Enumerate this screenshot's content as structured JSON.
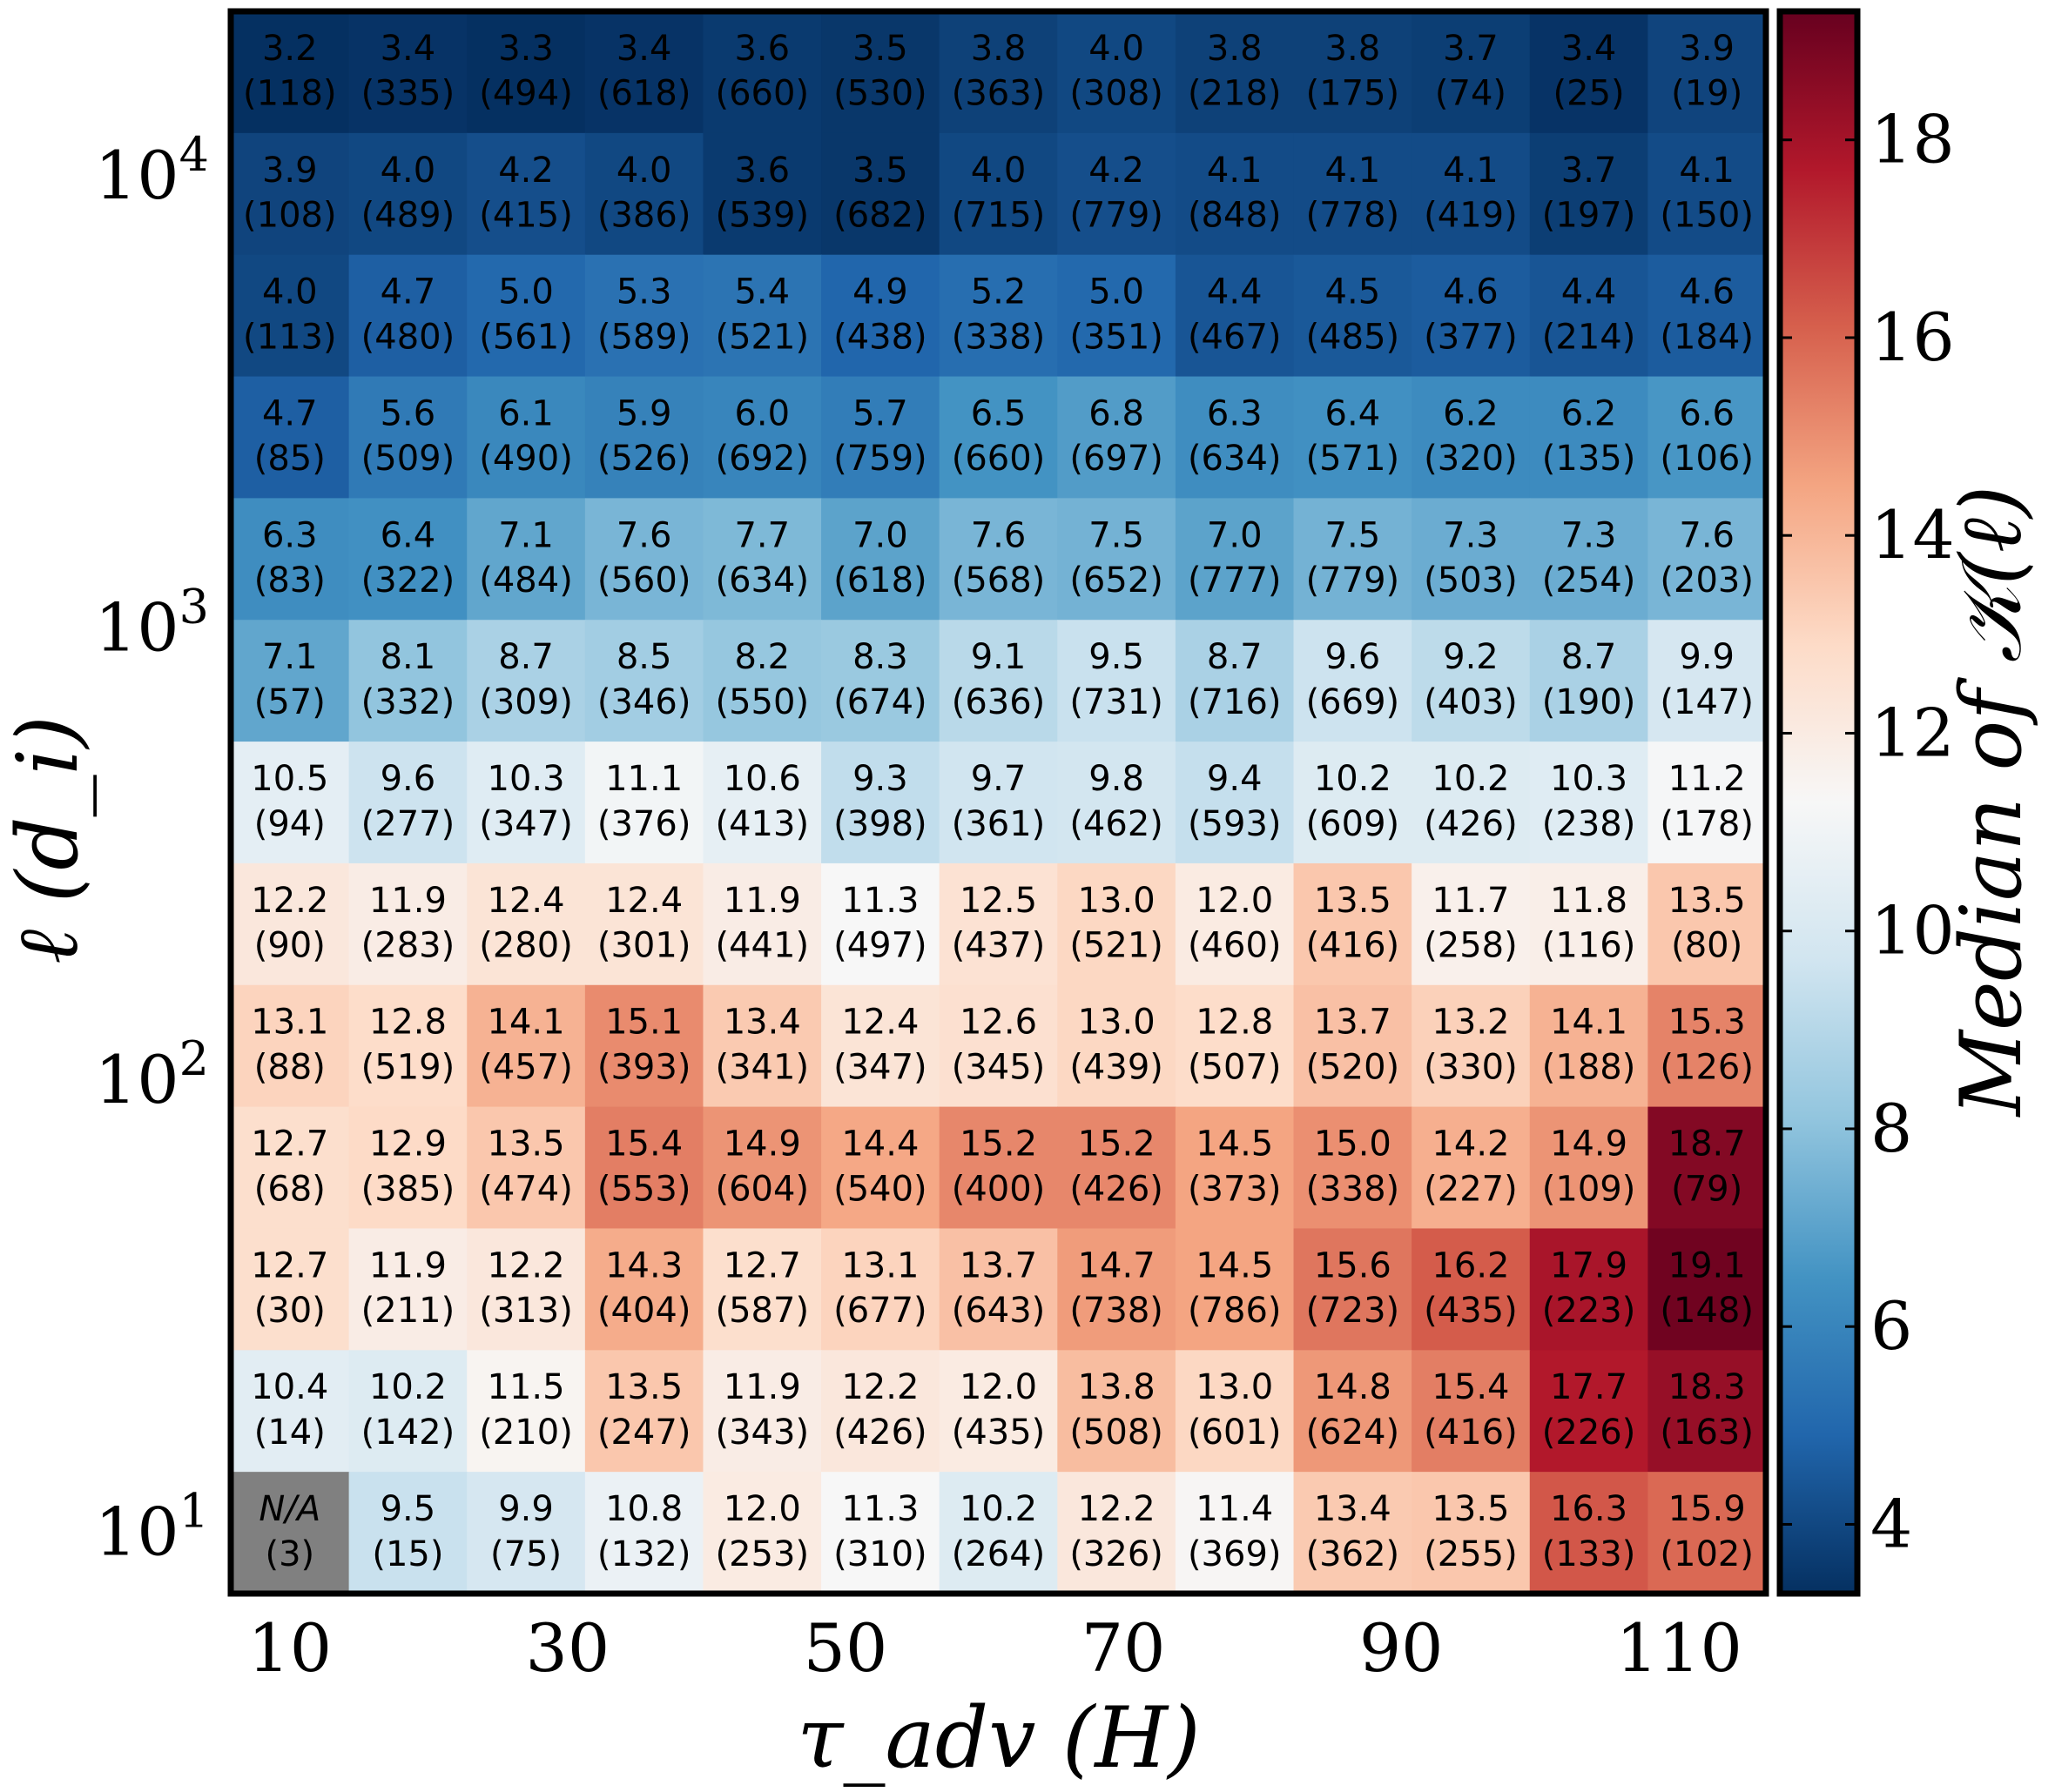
{
  "chart_data": {
    "type": "heatmap",
    "title": "",
    "xlabel": "τ_adv (H)",
    "ylabel": "ℓ (d_i)",
    "colorbar_label": "Median of 𝒦(ℓ)",
    "x_ticks": [
      "10",
      "30",
      "50",
      "70",
      "90",
      "110"
    ],
    "y_ticks": [
      "10^4",
      "10^3",
      "10^2",
      "10^1"
    ],
    "colorbar_ticks": [
      "4",
      "6",
      "8",
      "10",
      "12",
      "14",
      "16",
      "18"
    ],
    "colorbar_range": [
      3.3,
      19.3
    ],
    "colormap": "RdBu_r",
    "na_label": "N/A",
    "na_color": "#808080",
    "columns": 13,
    "rows_top_to_bottom": [
      {
        "values": [
          3.2,
          3.4,
          3.3,
          3.4,
          3.6,
          3.5,
          3.8,
          4.0,
          3.8,
          3.8,
          3.7,
          3.4,
          3.9
        ],
        "counts": [
          118,
          335,
          494,
          618,
          660,
          530,
          363,
          308,
          218,
          175,
          74,
          25,
          19
        ]
      },
      {
        "values": [
          3.9,
          4.0,
          4.2,
          4.0,
          3.6,
          3.5,
          4.0,
          4.2,
          4.1,
          4.1,
          4.1,
          3.7,
          4.1
        ],
        "counts": [
          108,
          489,
          415,
          386,
          539,
          682,
          715,
          779,
          848,
          778,
          419,
          197,
          150
        ]
      },
      {
        "values": [
          4.0,
          4.7,
          5.0,
          5.3,
          5.4,
          4.9,
          5.2,
          5.0,
          4.4,
          4.5,
          4.6,
          4.4,
          4.6
        ],
        "counts": [
          113,
          480,
          561,
          589,
          521,
          438,
          338,
          351,
          467,
          485,
          377,
          214,
          184
        ]
      },
      {
        "values": [
          4.7,
          5.6,
          6.1,
          5.9,
          6.0,
          5.7,
          6.5,
          6.8,
          6.3,
          6.4,
          6.2,
          6.2,
          6.6
        ],
        "counts": [
          85,
          509,
          490,
          526,
          692,
          759,
          660,
          697,
          634,
          571,
          320,
          135,
          106
        ]
      },
      {
        "values": [
          6.3,
          6.4,
          7.1,
          7.6,
          7.7,
          7.0,
          7.6,
          7.5,
          7.0,
          7.5,
          7.3,
          7.3,
          7.6
        ],
        "counts": [
          83,
          322,
          484,
          560,
          634,
          618,
          568,
          652,
          777,
          779,
          503,
          254,
          203
        ]
      },
      {
        "values": [
          7.1,
          8.1,
          8.7,
          8.5,
          8.2,
          8.3,
          9.1,
          9.5,
          8.7,
          9.6,
          9.2,
          8.7,
          9.9
        ],
        "counts": [
          57,
          332,
          309,
          346,
          550,
          674,
          636,
          731,
          716,
          669,
          403,
          190,
          147
        ]
      },
      {
        "values": [
          10.5,
          9.6,
          10.3,
          11.1,
          10.6,
          9.3,
          9.7,
          9.8,
          9.4,
          10.2,
          10.2,
          10.3,
          11.2
        ],
        "counts": [
          94,
          277,
          347,
          376,
          413,
          398,
          361,
          462,
          593,
          609,
          426,
          238,
          178
        ]
      },
      {
        "values": [
          12.2,
          11.9,
          12.4,
          12.4,
          11.9,
          11.3,
          12.5,
          13.0,
          12.0,
          13.5,
          11.7,
          11.8,
          13.5
        ],
        "counts": [
          90,
          283,
          280,
          301,
          441,
          497,
          437,
          521,
          460,
          416,
          258,
          116,
          80
        ]
      },
      {
        "values": [
          13.1,
          12.8,
          14.1,
          15.1,
          13.4,
          12.4,
          12.6,
          13.0,
          12.8,
          13.7,
          13.2,
          14.1,
          15.3
        ],
        "counts": [
          88,
          519,
          457,
          393,
          341,
          347,
          345,
          439,
          507,
          520,
          330,
          188,
          126
        ]
      },
      {
        "values": [
          12.7,
          12.9,
          13.5,
          15.4,
          14.9,
          14.4,
          15.2,
          15.2,
          14.5,
          15.0,
          14.2,
          14.9,
          18.7
        ],
        "counts": [
          68,
          385,
          474,
          553,
          604,
          540,
          400,
          426,
          373,
          338,
          227,
          109,
          79
        ]
      },
      {
        "values": [
          12.7,
          11.9,
          12.2,
          14.3,
          12.7,
          13.1,
          13.7,
          14.7,
          14.5,
          15.6,
          16.2,
          17.9,
          19.1
        ],
        "counts": [
          30,
          211,
          313,
          404,
          587,
          677,
          643,
          738,
          786,
          723,
          435,
          223,
          148
        ]
      },
      {
        "values": [
          10.4,
          10.2,
          11.5,
          13.5,
          11.9,
          12.2,
          12.0,
          13.8,
          13.0,
          14.8,
          15.4,
          17.7,
          18.3
        ],
        "counts": [
          14,
          142,
          210,
          247,
          343,
          426,
          435,
          508,
          601,
          624,
          416,
          226,
          163
        ]
      },
      {
        "values": [
          null,
          9.5,
          9.9,
          10.8,
          12.0,
          11.3,
          10.2,
          12.2,
          11.4,
          13.4,
          13.5,
          16.3,
          15.9
        ],
        "counts": [
          3,
          15,
          75,
          132,
          253,
          310,
          264,
          326,
          369,
          362,
          255,
          133,
          102
        ]
      }
    ]
  }
}
